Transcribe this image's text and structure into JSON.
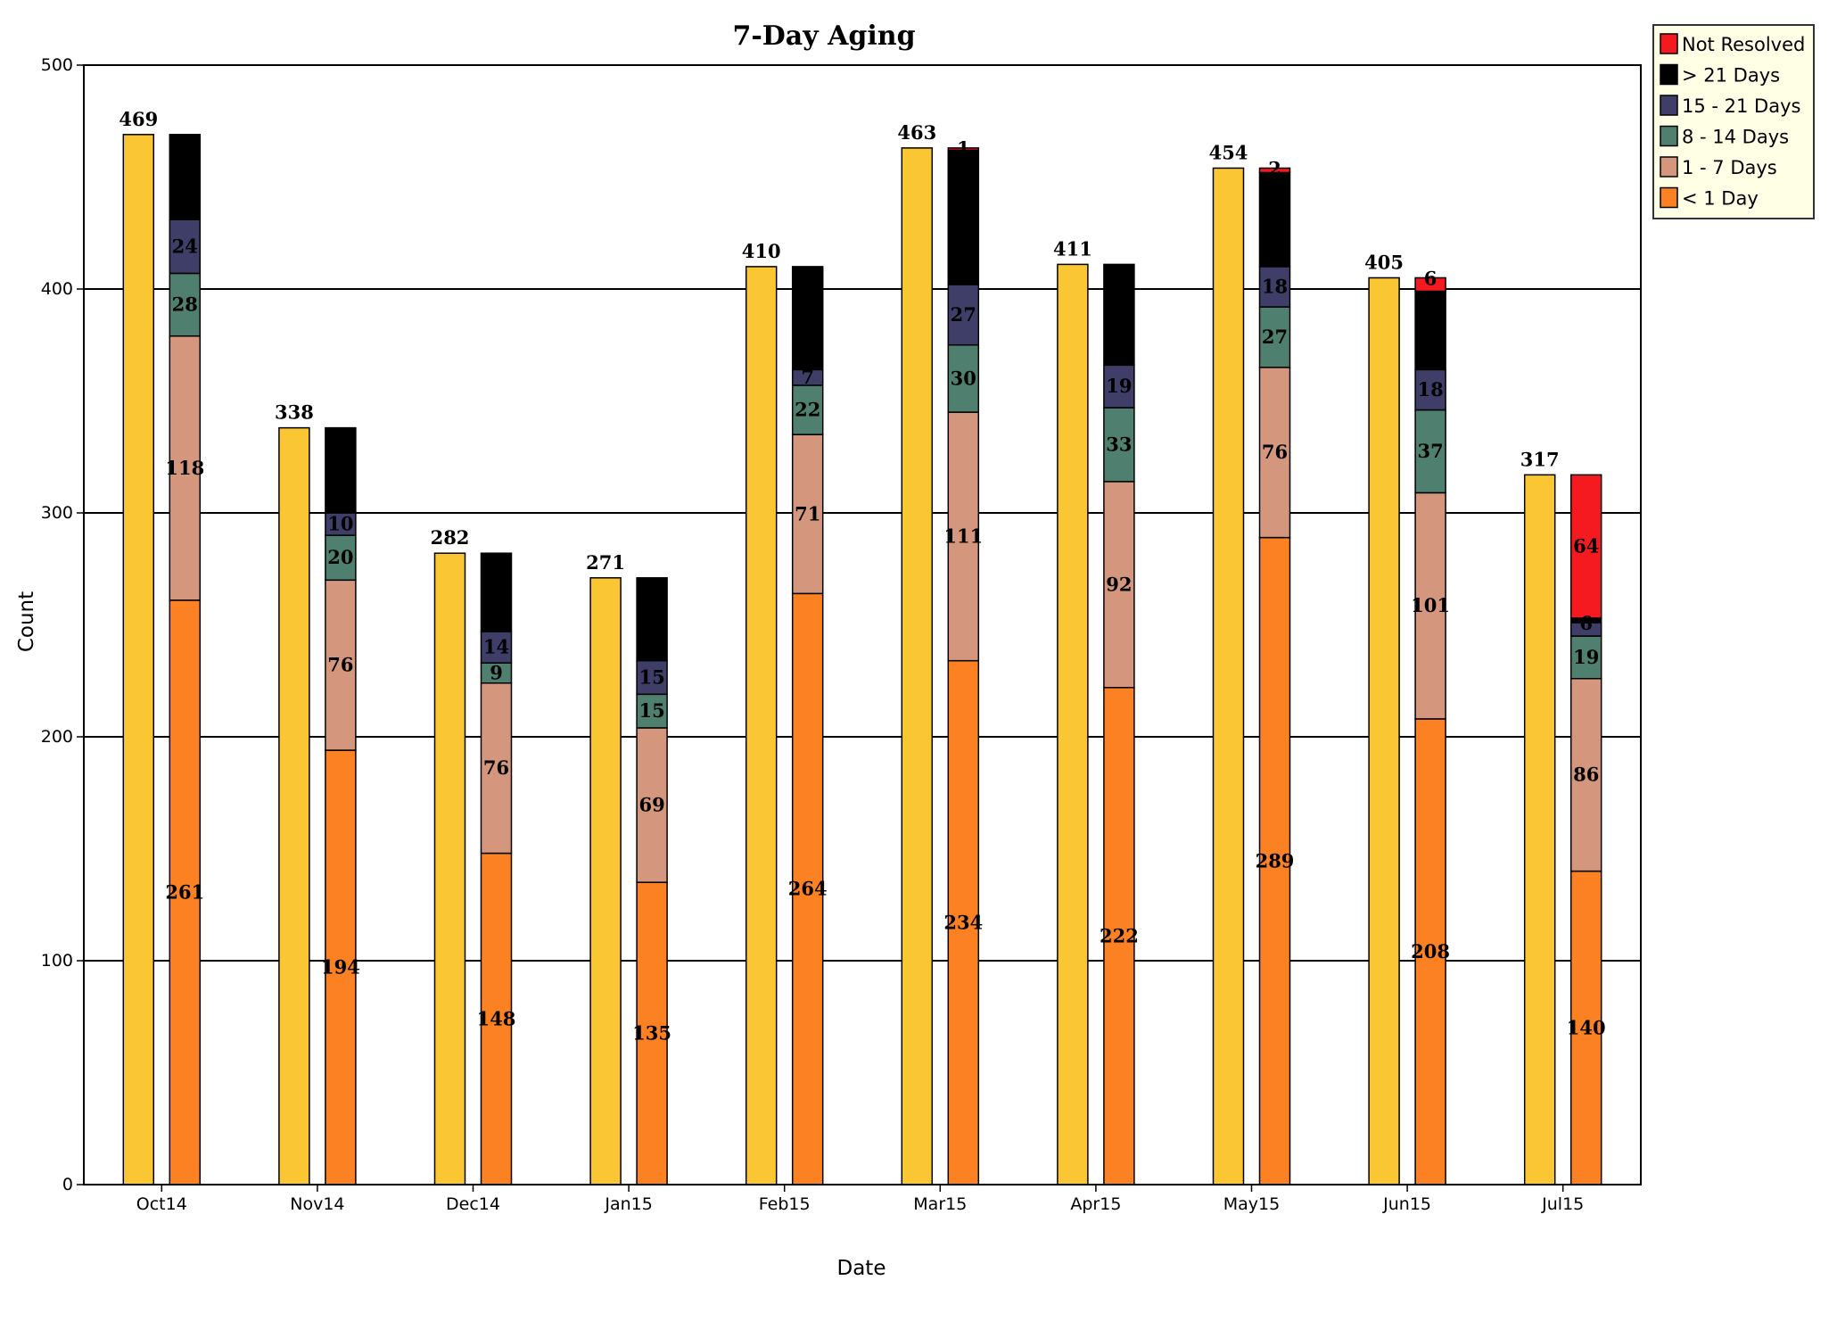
{
  "chart_data": {
    "type": "bar",
    "title": "7-Day Aging",
    "xlabel": "Date",
    "ylabel": "Count",
    "ylim": [
      0,
      500
    ],
    "yticks": [
      0,
      100,
      200,
      300,
      400,
      500
    ],
    "grid": true,
    "legend_position": "top-right",
    "categories": [
      "Oct14",
      "Nov14",
      "Dec14",
      "Jan15",
      "Feb15",
      "Mar15",
      "Apr15",
      "May15",
      "Jun15",
      "Jul15"
    ],
    "total_series": {
      "values": [
        469,
        338,
        282,
        271,
        410,
        463,
        411,
        454,
        405,
        317
      ],
      "color": "#FBC634"
    },
    "stacked_series": [
      {
        "name": "< 1 Day",
        "color": "#FB8123",
        "values": [
          261,
          194,
          148,
          135,
          264,
          234,
          222,
          289,
          208,
          140
        ]
      },
      {
        "name": "1 - 7 Days",
        "color": "#D4977D",
        "values": [
          118,
          76,
          76,
          69,
          71,
          111,
          92,
          76,
          101,
          86
        ]
      },
      {
        "name": "8 - 14 Days",
        "color": "#4F7F6E",
        "values": [
          28,
          20,
          9,
          15,
          22,
          30,
          33,
          27,
          37,
          19
        ]
      },
      {
        "name": "15 - 21 Days",
        "color": "#3E3E68",
        "values": [
          24,
          10,
          14,
          15,
          7,
          27,
          19,
          18,
          18,
          6
        ]
      },
      {
        "name": "> 21 Days",
        "color": "#000000",
        "values": [
          38,
          38,
          35,
          37,
          46,
          60,
          45,
          42,
          35,
          2
        ]
      },
      {
        "name": "Not Resolved",
        "color": "#F51A1F",
        "values": [
          0,
          0,
          0,
          0,
          0,
          1,
          0,
          2,
          6,
          64
        ]
      }
    ],
    "legend_order": [
      "Not Resolved",
      "> 21 Days",
      "15 - 21 Days",
      "8 - 14 Days",
      "1 - 7 Days",
      "< 1 Day"
    ]
  }
}
